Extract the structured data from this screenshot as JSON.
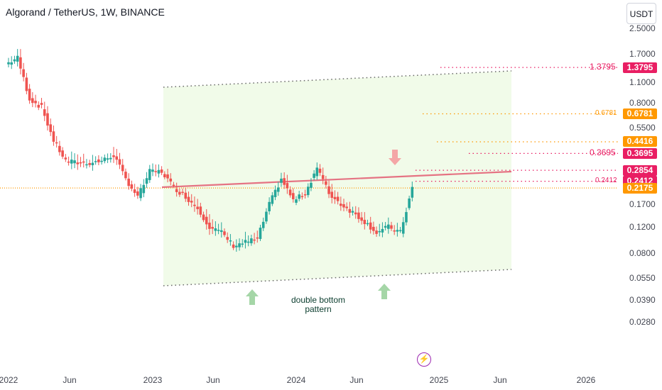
{
  "title": "Algorand / TetherUS, 1W, BINANCE",
  "currency_button": "USDT",
  "y_axis": {
    "ticks": [
      "2.5000",
      "1.7000",
      "1.1000",
      "0.8000",
      "0.5500",
      "0.3695",
      "0.1700",
      "0.1200",
      "0.0800",
      "0.0550",
      "0.0390",
      "0.0280"
    ]
  },
  "x_axis": {
    "ticks": [
      "2022",
      "Jun",
      "2023",
      "Jun",
      "2024",
      "Jun",
      "2025",
      "Jun",
      "2026"
    ]
  },
  "price_badges": [
    {
      "value": "1.3795",
      "color": "#e91e63"
    },
    {
      "value": "0.6781",
      "color": "#ff9800"
    },
    {
      "value": "0.4416",
      "color": "#ff9800"
    },
    {
      "value": "0.3695",
      "color": "#e91e63"
    },
    {
      "value": "0.2854",
      "color": "#e91e63"
    },
    {
      "value": "0.2412",
      "color": "#e91e63"
    },
    {
      "value": "0.2175",
      "color": "#ff9800"
    }
  ],
  "level_labels": [
    {
      "text": "1.3795",
      "color": "#e91e63"
    },
    {
      "text": "0.6781",
      "color": "#ff9800"
    },
    {
      "text": "0.3695",
      "color": "#e91e63"
    },
    {
      "text": "0.2412",
      "color": "#e91e63"
    }
  ],
  "annotation": {
    "line1": "double bottom",
    "line2": "pattern"
  },
  "colors": {
    "up": "#26a69a",
    "down": "#ef5350",
    "channel_fill": "#f1fbe9",
    "resistance": "#e57383",
    "arrow_up": "#a5d6a7",
    "arrow_down": "#f4a6a6"
  },
  "chart_data": {
    "type": "candlestick",
    "symbol": "Algorand / TetherUS",
    "interval": "1W",
    "exchange": "BINANCE",
    "y_scale": "log",
    "last_price": 0.2175,
    "horizontal_levels": [
      1.3795,
      0.6781,
      0.4416,
      0.3695,
      0.2854,
      0.2412,
      0.2175
    ],
    "key_points": [
      {
        "date": "2022-01",
        "close": 1.45
      },
      {
        "date": "2022-05",
        "close": 0.45
      },
      {
        "date": "2022-11",
        "close": 0.22
      },
      {
        "date": "2023-02",
        "close": 0.28
      },
      {
        "date": "2023-06",
        "close": 0.12
      },
      {
        "date": "2023-08",
        "close": 0.09
      },
      {
        "date": "2023-12",
        "close": 0.25
      },
      {
        "date": "2024-03",
        "close": 0.3
      },
      {
        "date": "2024-08",
        "close": 0.1
      },
      {
        "date": "2024-11",
        "close": 0.2175
      }
    ],
    "annotations": [
      "double bottom",
      "pattern"
    ]
  }
}
